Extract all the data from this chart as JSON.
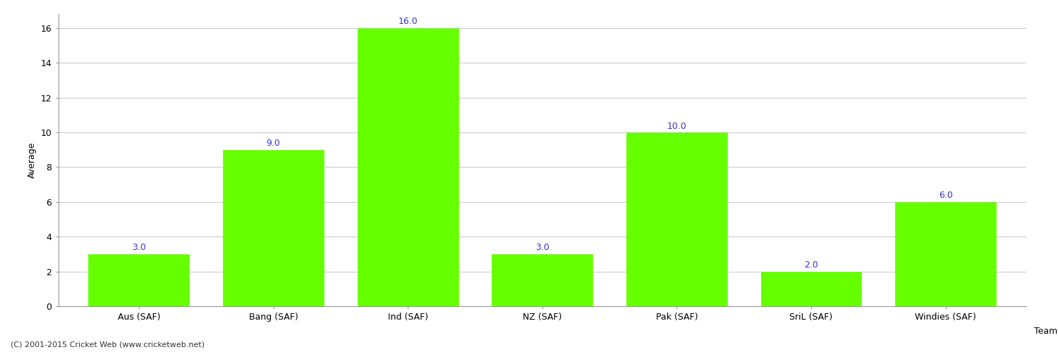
{
  "categories": [
    "Aus (SAF)",
    "Bang (SAF)",
    "Ind (SAF)",
    "NZ (SAF)",
    "Pak (SAF)",
    "SriL (SAF)",
    "Windies (SAF)"
  ],
  "values": [
    3.0,
    9.0,
    16.0,
    3.0,
    10.0,
    2.0,
    6.0
  ],
  "bar_color": "#66ff00",
  "bar_edge_color": "#66ff00",
  "label_color": "#3333cc",
  "xlabel": "Team",
  "ylabel": "Average",
  "ylim": [
    0,
    16.8
  ],
  "yticks": [
    0,
    2,
    4,
    6,
    8,
    10,
    12,
    14,
    16
  ],
  "grid_color": "#cccccc",
  "background_color": "#ffffff",
  "fig_width": 15.0,
  "fig_height": 5.0,
  "dpi": 100,
  "footnote": "(C) 2001-2015 Cricket Web (www.cricketweb.net)",
  "label_fontsize": 9,
  "axis_label_fontsize": 9,
  "tick_fontsize": 9
}
